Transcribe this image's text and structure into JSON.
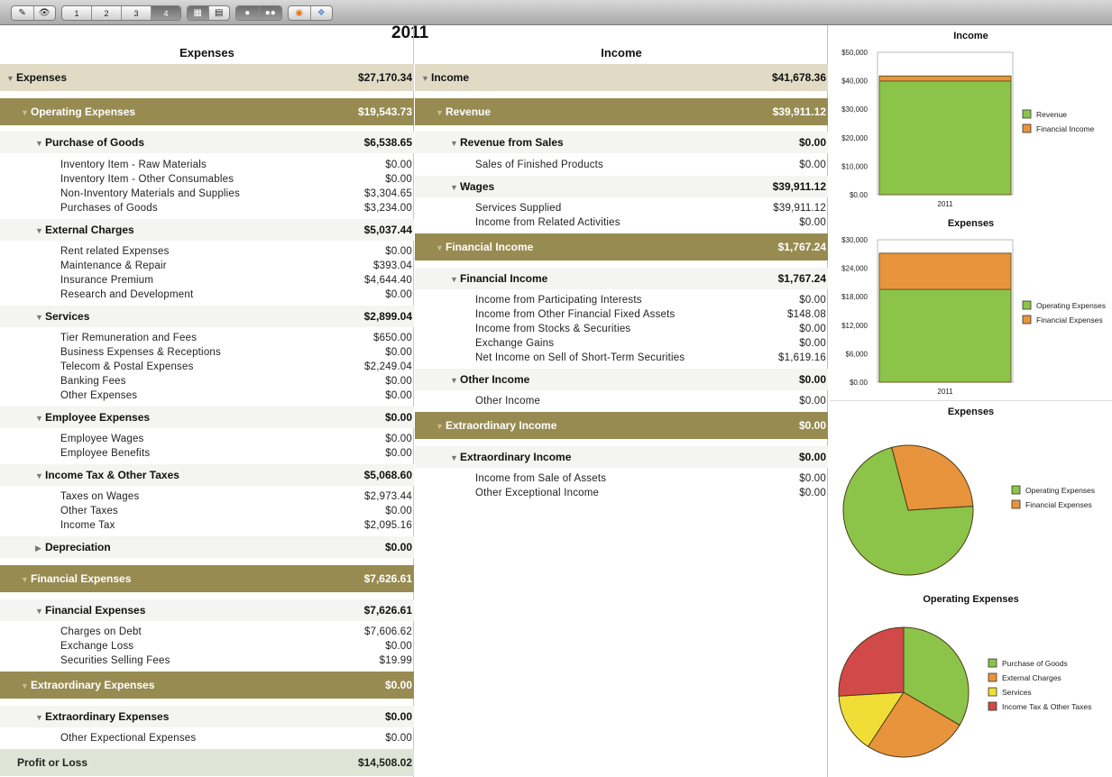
{
  "toolbar": {
    "pages": [
      "1",
      "2",
      "3",
      "4"
    ],
    "active_page": "4"
  },
  "year": "2011",
  "expenses_header": "Expenses",
  "income_header": "Income",
  "expenses_rows": [
    {
      "level": 0,
      "label": "Expenses",
      "value": "$27,170.34",
      "expanded": true
    },
    {
      "level": 1,
      "label": "Operating Expenses",
      "value": "$19,543.73",
      "expanded": true
    },
    {
      "level": 2,
      "label": "Purchase of Goods",
      "value": "$6,538.65",
      "expanded": true
    },
    {
      "level": 3,
      "label": "Inventory Item - Raw Materials",
      "value": "$0.00"
    },
    {
      "level": 3,
      "label": "Inventory Item - Other Consumables",
      "value": "$0.00"
    },
    {
      "level": 3,
      "label": "Non-Inventory Materials and Supplies",
      "value": "$3,304.65"
    },
    {
      "level": 3,
      "label": "Purchases of Goods",
      "value": "$3,234.00"
    },
    {
      "level": 2,
      "label": "External Charges",
      "value": "$5,037.44",
      "expanded": true
    },
    {
      "level": 3,
      "label": "Rent related Expenses",
      "value": "$0.00"
    },
    {
      "level": 3,
      "label": "Maintenance & Repair",
      "value": "$393.04"
    },
    {
      "level": 3,
      "label": "Insurance Premium",
      "value": "$4,644.40"
    },
    {
      "level": 3,
      "label": "Research and Development",
      "value": "$0.00"
    },
    {
      "level": 2,
      "label": "Services",
      "value": "$2,899.04",
      "expanded": true
    },
    {
      "level": 3,
      "label": "Tier Remuneration and Fees",
      "value": "$650.00"
    },
    {
      "level": 3,
      "label": "Business Expenses & Receptions",
      "value": "$0.00"
    },
    {
      "level": 3,
      "label": "Telecom & Postal Expenses",
      "value": "$2,249.04"
    },
    {
      "level": 3,
      "label": "Banking Fees",
      "value": "$0.00"
    },
    {
      "level": 3,
      "label": "Other Expenses",
      "value": "$0.00"
    },
    {
      "level": 2,
      "label": "Employee Expenses",
      "value": "$0.00",
      "expanded": true
    },
    {
      "level": 3,
      "label": "Employee Wages",
      "value": "$0.00"
    },
    {
      "level": 3,
      "label": "Employee Benefits",
      "value": "$0.00"
    },
    {
      "level": 2,
      "label": "Income Tax & Other Taxes",
      "value": "$5,068.60",
      "expanded": true
    },
    {
      "level": 3,
      "label": "Taxes on Wages",
      "value": "$2,973.44"
    },
    {
      "level": 3,
      "label": "Other Taxes",
      "value": "$0.00"
    },
    {
      "level": 3,
      "label": "Income Tax",
      "value": "$2,095.16"
    },
    {
      "level": 2,
      "label": "Depreciation",
      "value": "$0.00",
      "expanded": false
    },
    {
      "level": 1,
      "label": "Financial Expenses",
      "value": "$7,626.61",
      "expanded": true
    },
    {
      "level": 2,
      "label": "Financial Expenses",
      "value": "$7,626.61",
      "expanded": true
    },
    {
      "level": 3,
      "label": "Charges on Debt",
      "value": "$7,606.62"
    },
    {
      "level": 3,
      "label": "Exchange Loss",
      "value": "$0.00"
    },
    {
      "level": 3,
      "label": "Securities Selling Fees",
      "value": "$19.99"
    },
    {
      "level": 1,
      "label": "Extraordinary Expenses",
      "value": "$0.00",
      "expanded": true
    },
    {
      "level": 2,
      "label": "Extraordinary Expenses",
      "value": "$0.00",
      "expanded": true
    },
    {
      "level": 3,
      "label": "Other Expectional Expenses",
      "value": "$0.00"
    },
    {
      "level": 9,
      "label": "Profit or Loss",
      "value": "$14,508.02"
    }
  ],
  "income_rows": [
    {
      "level": 0,
      "label": "Income",
      "value": "$41,678.36",
      "expanded": true
    },
    {
      "level": 1,
      "label": "Revenue",
      "value": "$39,911.12",
      "expanded": true
    },
    {
      "level": 2,
      "label": "Revenue from Sales",
      "value": "$0.00",
      "expanded": true
    },
    {
      "level": 3,
      "label": "Sales of Finished Products",
      "value": "$0.00"
    },
    {
      "level": 2,
      "label": "Wages",
      "value": "$39,911.12",
      "expanded": true
    },
    {
      "level": 3,
      "label": "Services Supplied",
      "value": "$39,911.12"
    },
    {
      "level": 3,
      "label": "Income from Related Activities",
      "value": "$0.00"
    },
    {
      "level": 1,
      "label": "Financial Income",
      "value": "$1,767.24",
      "expanded": true
    },
    {
      "level": 2,
      "label": "Financial Income",
      "value": "$1,767.24",
      "expanded": true
    },
    {
      "level": 3,
      "label": "Income from Participating Interests",
      "value": "$0.00"
    },
    {
      "level": 3,
      "label": "Income from Other Financial Fixed Assets",
      "value": "$148.08"
    },
    {
      "level": 3,
      "label": "Income from Stocks & Securities",
      "value": "$0.00"
    },
    {
      "level": 3,
      "label": "Exchange Gains",
      "value": "$0.00"
    },
    {
      "level": 3,
      "label": "Net Income on Sell of Short-Term Securities",
      "value": "$1,619.16"
    },
    {
      "level": 2,
      "label": "Other Income",
      "value": "$0.00",
      "expanded": true
    },
    {
      "level": 3,
      "label": "Other Income",
      "value": "$0.00"
    },
    {
      "level": 1,
      "label": "Extraordinary Income",
      "value": "$0.00",
      "expanded": true
    },
    {
      "level": 2,
      "label": "Extraordinary Income",
      "value": "$0.00",
      "expanded": true
    },
    {
      "level": 3,
      "label": "Income from Sale of Assets",
      "value": "$0.00"
    },
    {
      "level": 3,
      "label": "Other Exceptional Income",
      "value": "$0.00"
    }
  ],
  "colors": {
    "green": "#8cc44a",
    "orange": "#e8943c",
    "yellow": "#f0de36",
    "red": "#d2494a",
    "level1_band": "#978b52",
    "level0_band": "#e1dbc6"
  },
  "chart_data": [
    {
      "type": "bar",
      "stacked": true,
      "title": "Income",
      "categories": [
        "2011"
      ],
      "series": [
        {
          "name": "Revenue",
          "values": [
            39911.12
          ],
          "color": "#8cc44a"
        },
        {
          "name": "Financial Income",
          "values": [
            1767.24
          ],
          "color": "#e8943c"
        }
      ],
      "yticks": [
        "$50,000",
        "$40,000",
        "$30,000",
        "$20,000",
        "$10,000",
        "$0.00"
      ],
      "ylim": [
        0,
        50000
      ],
      "legend": "right"
    },
    {
      "type": "bar",
      "stacked": true,
      "title": "Expenses",
      "categories": [
        "2011"
      ],
      "series": [
        {
          "name": "Operating Expenses",
          "values": [
            19543.73
          ],
          "color": "#8cc44a"
        },
        {
          "name": "Financial Expenses",
          "values": [
            7626.61
          ],
          "color": "#e8943c"
        }
      ],
      "yticks": [
        "$30,000",
        "$24,000",
        "$18,000",
        "$12,000",
        "$6,000",
        "$0.00"
      ],
      "ylim": [
        0,
        30000
      ],
      "legend": "right"
    },
    {
      "type": "pie",
      "title": "Expenses",
      "labels": [
        "Operating Expenses",
        "Financial Expenses"
      ],
      "values": [
        19543.73,
        7626.61
      ],
      "colors": [
        "#8cc44a",
        "#e8943c"
      ],
      "legend": "right"
    },
    {
      "type": "pie",
      "title": "Operating Expenses",
      "labels": [
        "Purchase of Goods",
        "External Charges",
        "Services",
        "Income Tax & Other Taxes"
      ],
      "values": [
        6538.65,
        5037.44,
        2899.04,
        5068.6
      ],
      "colors": [
        "#8cc44a",
        "#e8943c",
        "#f0de36",
        "#d2494a"
      ],
      "legend": "right"
    }
  ]
}
